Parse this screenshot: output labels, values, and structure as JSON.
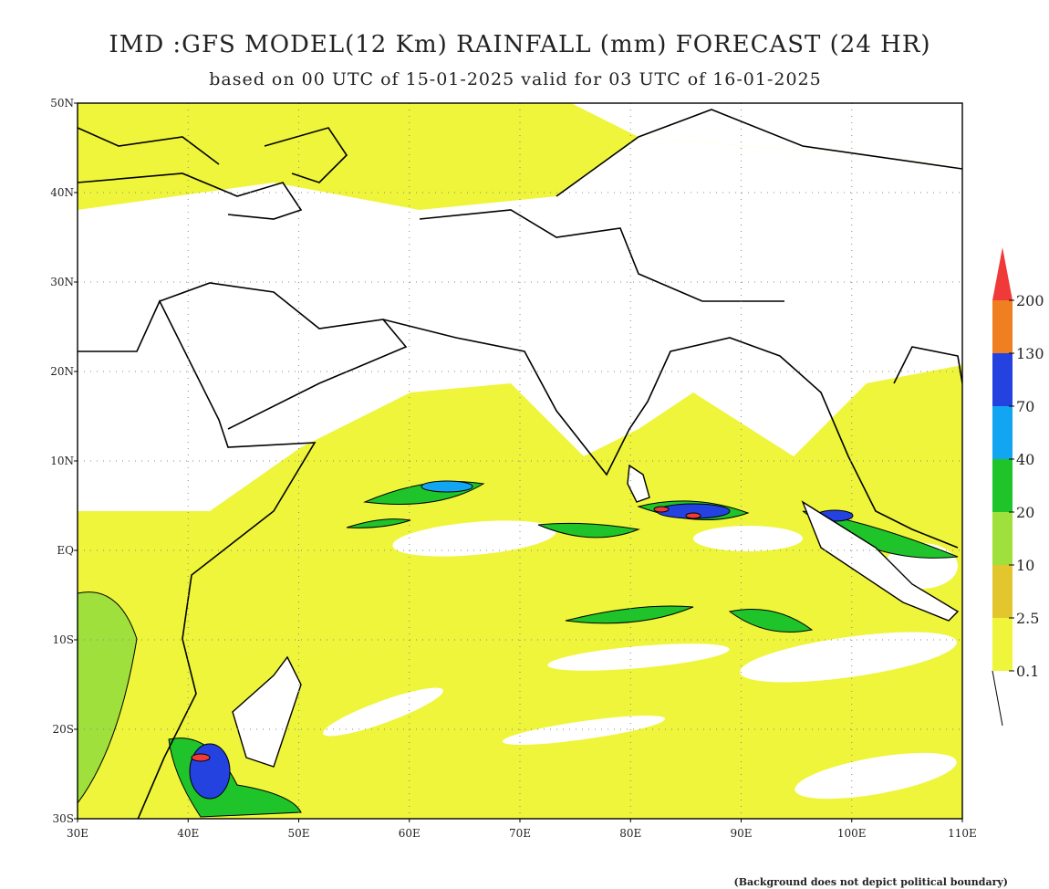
{
  "header": {
    "title": "IMD :GFS MODEL(12 Km) RAINFALL (mm) FORECAST (24 HR)",
    "subtitle": "based on 00 UTC of 15-01-2025 valid for 03 UTC of 16-01-2025"
  },
  "map": {
    "lat_labels": [
      "50N",
      "40N",
      "30N",
      "20N",
      "10N",
      "EQ",
      "10S",
      "20S",
      "30S"
    ],
    "lon_labels": [
      "30E",
      "40E",
      "50E",
      "60E",
      "70E",
      "80E",
      "90E",
      "100E",
      "110E"
    ]
  },
  "legend": {
    "levels": [
      "0.1",
      "2.5",
      "10",
      "20",
      "40",
      "70",
      "130",
      "200"
    ],
    "colors": [
      "#eef53a",
      "#e3c62e",
      "#9fe03c",
      "#1fc42a",
      "#12a6f2",
      "#2442e0",
      "#f07f22",
      "#f03a3a"
    ]
  },
  "footnote": "(Background does not depict political boundary)"
}
